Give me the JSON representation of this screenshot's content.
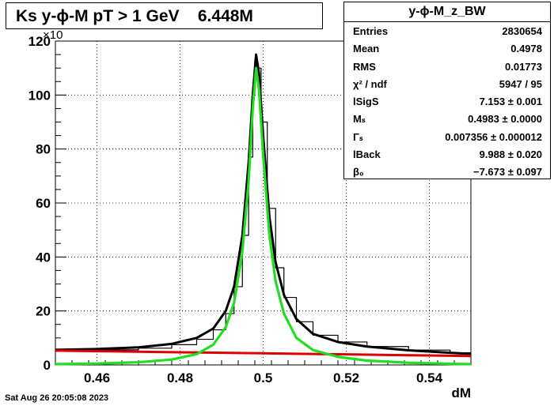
{
  "title": "Ks y-ϕ-M pT > 1 GeV    6.448M",
  "stats": {
    "name": "y-ϕ-M_z_BW",
    "rows": [
      {
        "key": "Entries",
        "value": "2830654"
      },
      {
        "key": "Mean",
        "value": "0.4978"
      },
      {
        "key": "RMS",
        "value": "0.01773"
      },
      {
        "key": "χ² / ndf",
        "value": "5947 / 95"
      },
      {
        "key": "lSigS",
        "value": "7.153 ± 0.001"
      },
      {
        "key": "Mₛ",
        "value": "0.4983 ± 0.0000"
      },
      {
        "key": "Γₛ",
        "value": "0.007356 ± 0.000012"
      },
      {
        "key": "lBack",
        "value": "9.988 ± 0.020"
      },
      {
        "key": "β₀",
        "value": "−7.673 ± 0.097"
      }
    ]
  },
  "date": "Sat Aug 26 20:05:08 2023",
  "chart_data": {
    "type": "line",
    "xlabel": "dM",
    "ylabel": "",
    "y_multiplier_label": "×10",
    "xlim": [
      0.45,
      0.55
    ],
    "ylim": [
      0,
      120
    ],
    "xticks": [
      0.46,
      0.48,
      0.5,
      0.52,
      0.54
    ],
    "xtick_labels": [
      "0.46",
      "0.48",
      "0.5",
      "0.52",
      "0.54"
    ],
    "yticks": [
      0,
      20,
      40,
      60,
      80,
      100,
      120
    ],
    "ytick_labels": [
      "0",
      "20",
      "40",
      "60",
      "80",
      "100",
      "120"
    ],
    "grid": true,
    "colors": {
      "histogram": "#000000",
      "total_fit": "#000000",
      "signal": "#22dd22",
      "background": "#dd0000"
    },
    "series": [
      {
        "key": "histogram",
        "x": [
          0.45,
          0.46,
          0.47,
          0.478,
          0.484,
          0.488,
          0.491,
          0.493,
          0.495,
          0.4965,
          0.4975,
          0.498,
          0.4985,
          0.4995,
          0.501,
          0.503,
          0.505,
          0.508,
          0.512,
          0.518,
          0.525,
          0.535,
          0.545,
          0.55
        ],
        "y": [
          5.3,
          5.6,
          6.2,
          7.5,
          9.5,
          13,
          19,
          29,
          48,
          77,
          100,
          113,
          110,
          90,
          58,
          36,
          25,
          16,
          11,
          8.5,
          6.8,
          5.5,
          4.5,
          4.2
        ]
      },
      {
        "key": "total_fit",
        "x": [
          0.45,
          0.46,
          0.47,
          0.478,
          0.484,
          0.488,
          0.491,
          0.493,
          0.495,
          0.4965,
          0.4975,
          0.4983,
          0.499,
          0.5,
          0.5015,
          0.503,
          0.505,
          0.508,
          0.512,
          0.518,
          0.525,
          0.535,
          0.545,
          0.55
        ],
        "y": [
          5.6,
          5.9,
          6.5,
          7.8,
          10,
          13.5,
          20,
          29,
          48,
          75,
          100,
          115,
          108,
          85,
          55,
          38,
          26,
          17,
          11.5,
          8.5,
          6.8,
          5.4,
          4.5,
          4.1
        ]
      },
      {
        "key": "signal",
        "x": [
          0.45,
          0.46,
          0.47,
          0.478,
          0.484,
          0.488,
          0.491,
          0.493,
          0.495,
          0.4965,
          0.4975,
          0.4983,
          0.499,
          0.5,
          0.5015,
          0.503,
          0.505,
          0.508,
          0.512,
          0.518,
          0.525,
          0.535,
          0.545,
          0.55
        ],
        "y": [
          0.3,
          0.5,
          1.0,
          2.0,
          4.0,
          7.5,
          14,
          23,
          42,
          68,
          95,
          110,
          102,
          78,
          48,
          31,
          19,
          10,
          5.5,
          3.0,
          1.6,
          0.8,
          0.4,
          0.3
        ]
      },
      {
        "key": "background",
        "x": [
          0.45,
          0.46,
          0.47,
          0.48,
          0.49,
          0.5,
          0.51,
          0.52,
          0.53,
          0.54,
          0.55
        ],
        "y": [
          5.3,
          5.1,
          4.9,
          4.7,
          4.5,
          4.3,
          4.1,
          3.9,
          3.7,
          3.5,
          3.3
        ]
      }
    ]
  }
}
